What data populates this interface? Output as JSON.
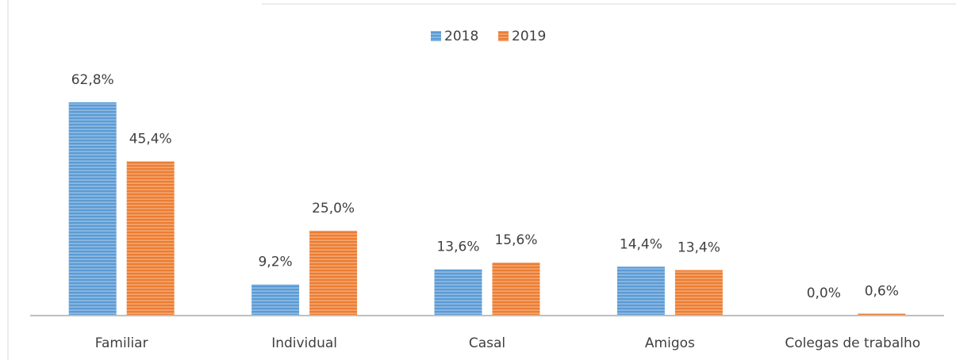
{
  "chart_data": {
    "type": "bar",
    "categories": [
      "Familiar",
      "Individual",
      "Casal",
      "Amigos",
      "Colegas de trabalho"
    ],
    "series": [
      {
        "name": "2018",
        "color": "#5b9bd5",
        "values": [
          62.8,
          9.2,
          13.6,
          14.4,
          0.0
        ],
        "value_labels": [
          "62,8%",
          "9,2%",
          "13,6%",
          "14,4%",
          "0,0%"
        ]
      },
      {
        "name": "2019",
        "color": "#ed7d31",
        "values": [
          45.4,
          25.0,
          15.6,
          13.4,
          0.6
        ],
        "value_labels": [
          "45,4%",
          "25,0%",
          "15,6%",
          "13,4%",
          "0,6%"
        ]
      }
    ],
    "legend": "top",
    "grid": false
  }
}
